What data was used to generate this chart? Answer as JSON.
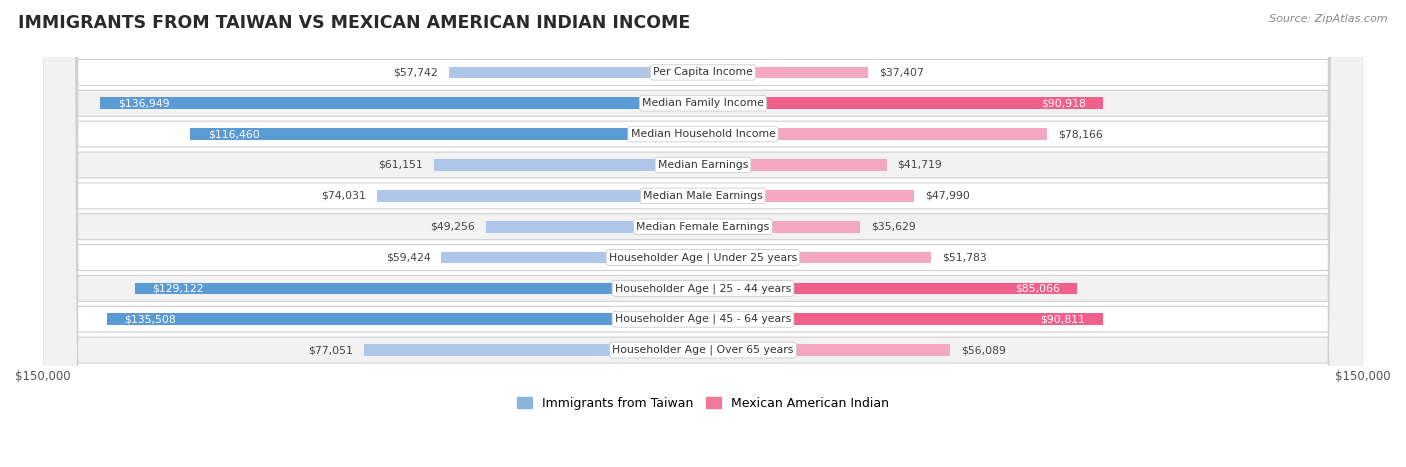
{
  "title": "IMMIGRANTS FROM TAIWAN VS MEXICAN AMERICAN INDIAN INCOME",
  "source": "Source: ZipAtlas.com",
  "categories": [
    "Per Capita Income",
    "Median Family Income",
    "Median Household Income",
    "Median Earnings",
    "Median Male Earnings",
    "Median Female Earnings",
    "Householder Age | Under 25 years",
    "Householder Age | 25 - 44 years",
    "Householder Age | 45 - 64 years",
    "Householder Age | Over 65 years"
  ],
  "taiwan_values": [
    57742,
    136949,
    116460,
    61151,
    74031,
    49256,
    59424,
    129122,
    135508,
    77051
  ],
  "mexican_values": [
    37407,
    90918,
    78166,
    41719,
    47990,
    35629,
    51783,
    85066,
    90811,
    56089
  ],
  "taiwan_color_light": "#aec6e8",
  "taiwan_color_dark": "#5b9bd5",
  "mexican_color_light": "#f4a7c0",
  "mexican_color_dark": "#f0608a",
  "max_value": 150000,
  "row_bg_odd": "#f2f2f2",
  "row_bg_even": "#ffffff",
  "legend_taiwan_color": "#8ab4d8",
  "legend_mexican_color": "#f07898",
  "taiwan_dark_threshold": 110000,
  "mexican_dark_threshold": 85000
}
